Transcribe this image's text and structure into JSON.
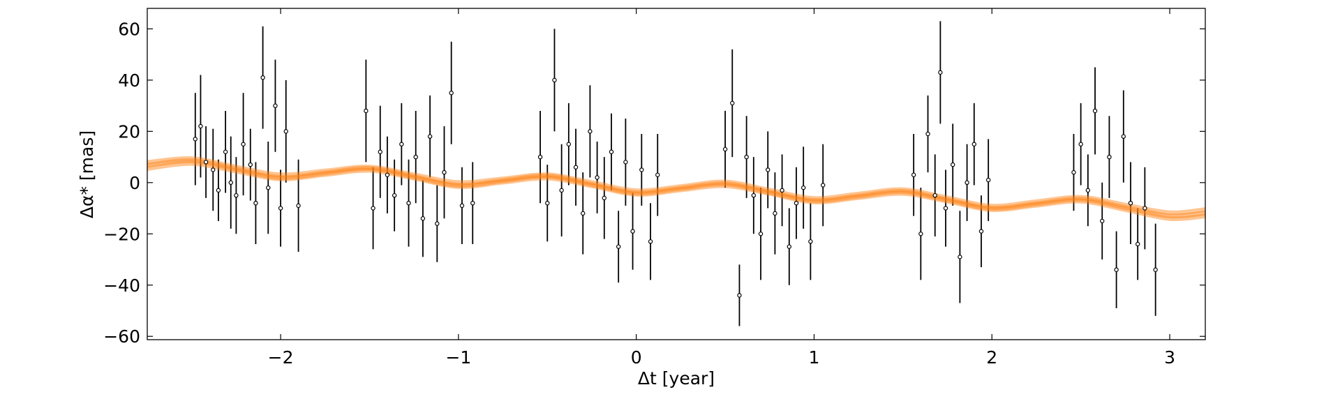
{
  "chart_data": {
    "type": "scatter",
    "xlabel": "Δt [year]",
    "ylabel": "Δα* [mas]",
    "xlim": [
      -2.75,
      3.2
    ],
    "ylim": [
      -61.3,
      68
    ],
    "xticks": [
      {
        "value": -2,
        "label": "−2"
      },
      {
        "value": -1,
        "label": "−1"
      },
      0,
      1,
      2,
      3
    ],
    "yticks": [
      {
        "value": -60,
        "label": "−60"
      },
      {
        "value": -40,
        "label": "−40"
      },
      {
        "value": -20,
        "label": "−20"
      },
      0,
      20,
      40,
      60
    ],
    "point_color": "#000000",
    "model_color": "#ff7f0e",
    "points": {
      "x": [
        -2.48,
        -2.45,
        -2.42,
        -2.38,
        -2.35,
        -2.31,
        -2.28,
        -2.25,
        -2.21,
        -2.17,
        -2.14,
        -2.1,
        -2.07,
        -2.03,
        -2.0,
        -1.97,
        -1.9,
        -1.52,
        -1.48,
        -1.44,
        -1.4,
        -1.36,
        -1.32,
        -1.28,
        -1.24,
        -1.2,
        -1.16,
        -1.12,
        -1.08,
        -1.04,
        -0.98,
        -0.92,
        -0.54,
        -0.5,
        -0.46,
        -0.42,
        -0.38,
        -0.34,
        -0.3,
        -0.26,
        -0.22,
        -0.18,
        -0.14,
        -0.1,
        -0.06,
        -0.02,
        0.03,
        0.08,
        0.12,
        0.5,
        0.54,
        0.58,
        0.62,
        0.66,
        0.7,
        0.74,
        0.78,
        0.82,
        0.86,
        0.9,
        0.94,
        0.98,
        1.05,
        1.56,
        1.6,
        1.64,
        1.68,
        1.71,
        1.74,
        1.78,
        1.82,
        1.86,
        1.9,
        1.94,
        1.98,
        2.46,
        2.5,
        2.54,
        2.58,
        2.62,
        2.66,
        2.7,
        2.74,
        2.78,
        2.82,
        2.86,
        2.92
      ],
      "y": [
        17,
        22,
        8,
        5,
        -3,
        12,
        0,
        -5,
        15,
        7,
        -8,
        41,
        -2,
        30,
        -10,
        20,
        -9,
        28,
        -10,
        12,
        3,
        -5,
        15,
        -8,
        10,
        -14,
        18,
        -16,
        4,
        35,
        -9,
        -8,
        10,
        -8,
        40,
        -3,
        15,
        6,
        -12,
        20,
        2,
        -6,
        12,
        -25,
        8,
        -19,
        5,
        -23,
        3,
        13,
        31,
        -44,
        10,
        -5,
        -20,
        5,
        -12,
        -3,
        -25,
        -8,
        -2,
        -23,
        -1,
        3,
        -20,
        19,
        -5,
        43,
        -10,
        7,
        -29,
        0,
        15,
        -19,
        1,
        4,
        15,
        -3,
        28,
        -15,
        10,
        -34,
        18,
        -8,
        -24,
        -10,
        -34
      ],
      "err": [
        18,
        20,
        14,
        16,
        12,
        16,
        18,
        15,
        20,
        14,
        16,
        20,
        18,
        18,
        15,
        20,
        18,
        20,
        16,
        18,
        15,
        14,
        16,
        17,
        18,
        15,
        16,
        15,
        18,
        20,
        15,
        16,
        18,
        15,
        20,
        18,
        16,
        15,
        16,
        18,
        14,
        16,
        15,
        14,
        17,
        15,
        14,
        15,
        16,
        15,
        21,
        12,
        16,
        15,
        18,
        15,
        16,
        14,
        15,
        14,
        16,
        15,
        16,
        16,
        18,
        15,
        16,
        20,
        15,
        16,
        18,
        15,
        16,
        14,
        16,
        15,
        16,
        14,
        17,
        15,
        16,
        15,
        18,
        16,
        14,
        16,
        18
      ]
    },
    "model_x": [
      -2.75,
      -2.5,
      -2.25,
      -2,
      -1.75,
      -1.5,
      -1.25,
      -1,
      -0.75,
      -0.5,
      -0.25,
      0,
      0.25,
      0.5,
      0.75,
      1,
      1.25,
      1.5,
      1.75,
      2,
      2.25,
      2.5,
      2.75,
      3,
      3.2
    ],
    "models": [
      [
        6.75,
        8.5,
        5.25,
        2,
        3.75,
        5.5,
        2.25,
        -1,
        0.75,
        2.5,
        -0.75,
        -4,
        -2.25,
        -0.5,
        -3.75,
        -7,
        -5.25,
        -3.5,
        -6.75,
        -10,
        -8.25,
        -6.5,
        -9.75,
        -13,
        -11.9
      ],
      [
        5.5,
        7.5,
        4.5,
        1.5,
        3.2,
        4.8,
        1.8,
        -1.5,
        0.2,
        1.8,
        -1.2,
        -4.5,
        -2.8,
        -1.2,
        -4.2,
        -7.5,
        -5.8,
        -4.2,
        -7.2,
        -10.5,
        -8.8,
        -7.2,
        -10.5,
        -14,
        -13
      ],
      [
        7.8,
        9.3,
        6,
        3,
        4.5,
        6,
        3,
        0,
        1.4,
        3,
        0,
        -3.2,
        -1.6,
        0.2,
        -3,
        -6.2,
        -4.5,
        -2.8,
        -6,
        -9.2,
        -7.5,
        -5.8,
        -8.8,
        -11.8,
        -10.6
      ]
    ]
  }
}
